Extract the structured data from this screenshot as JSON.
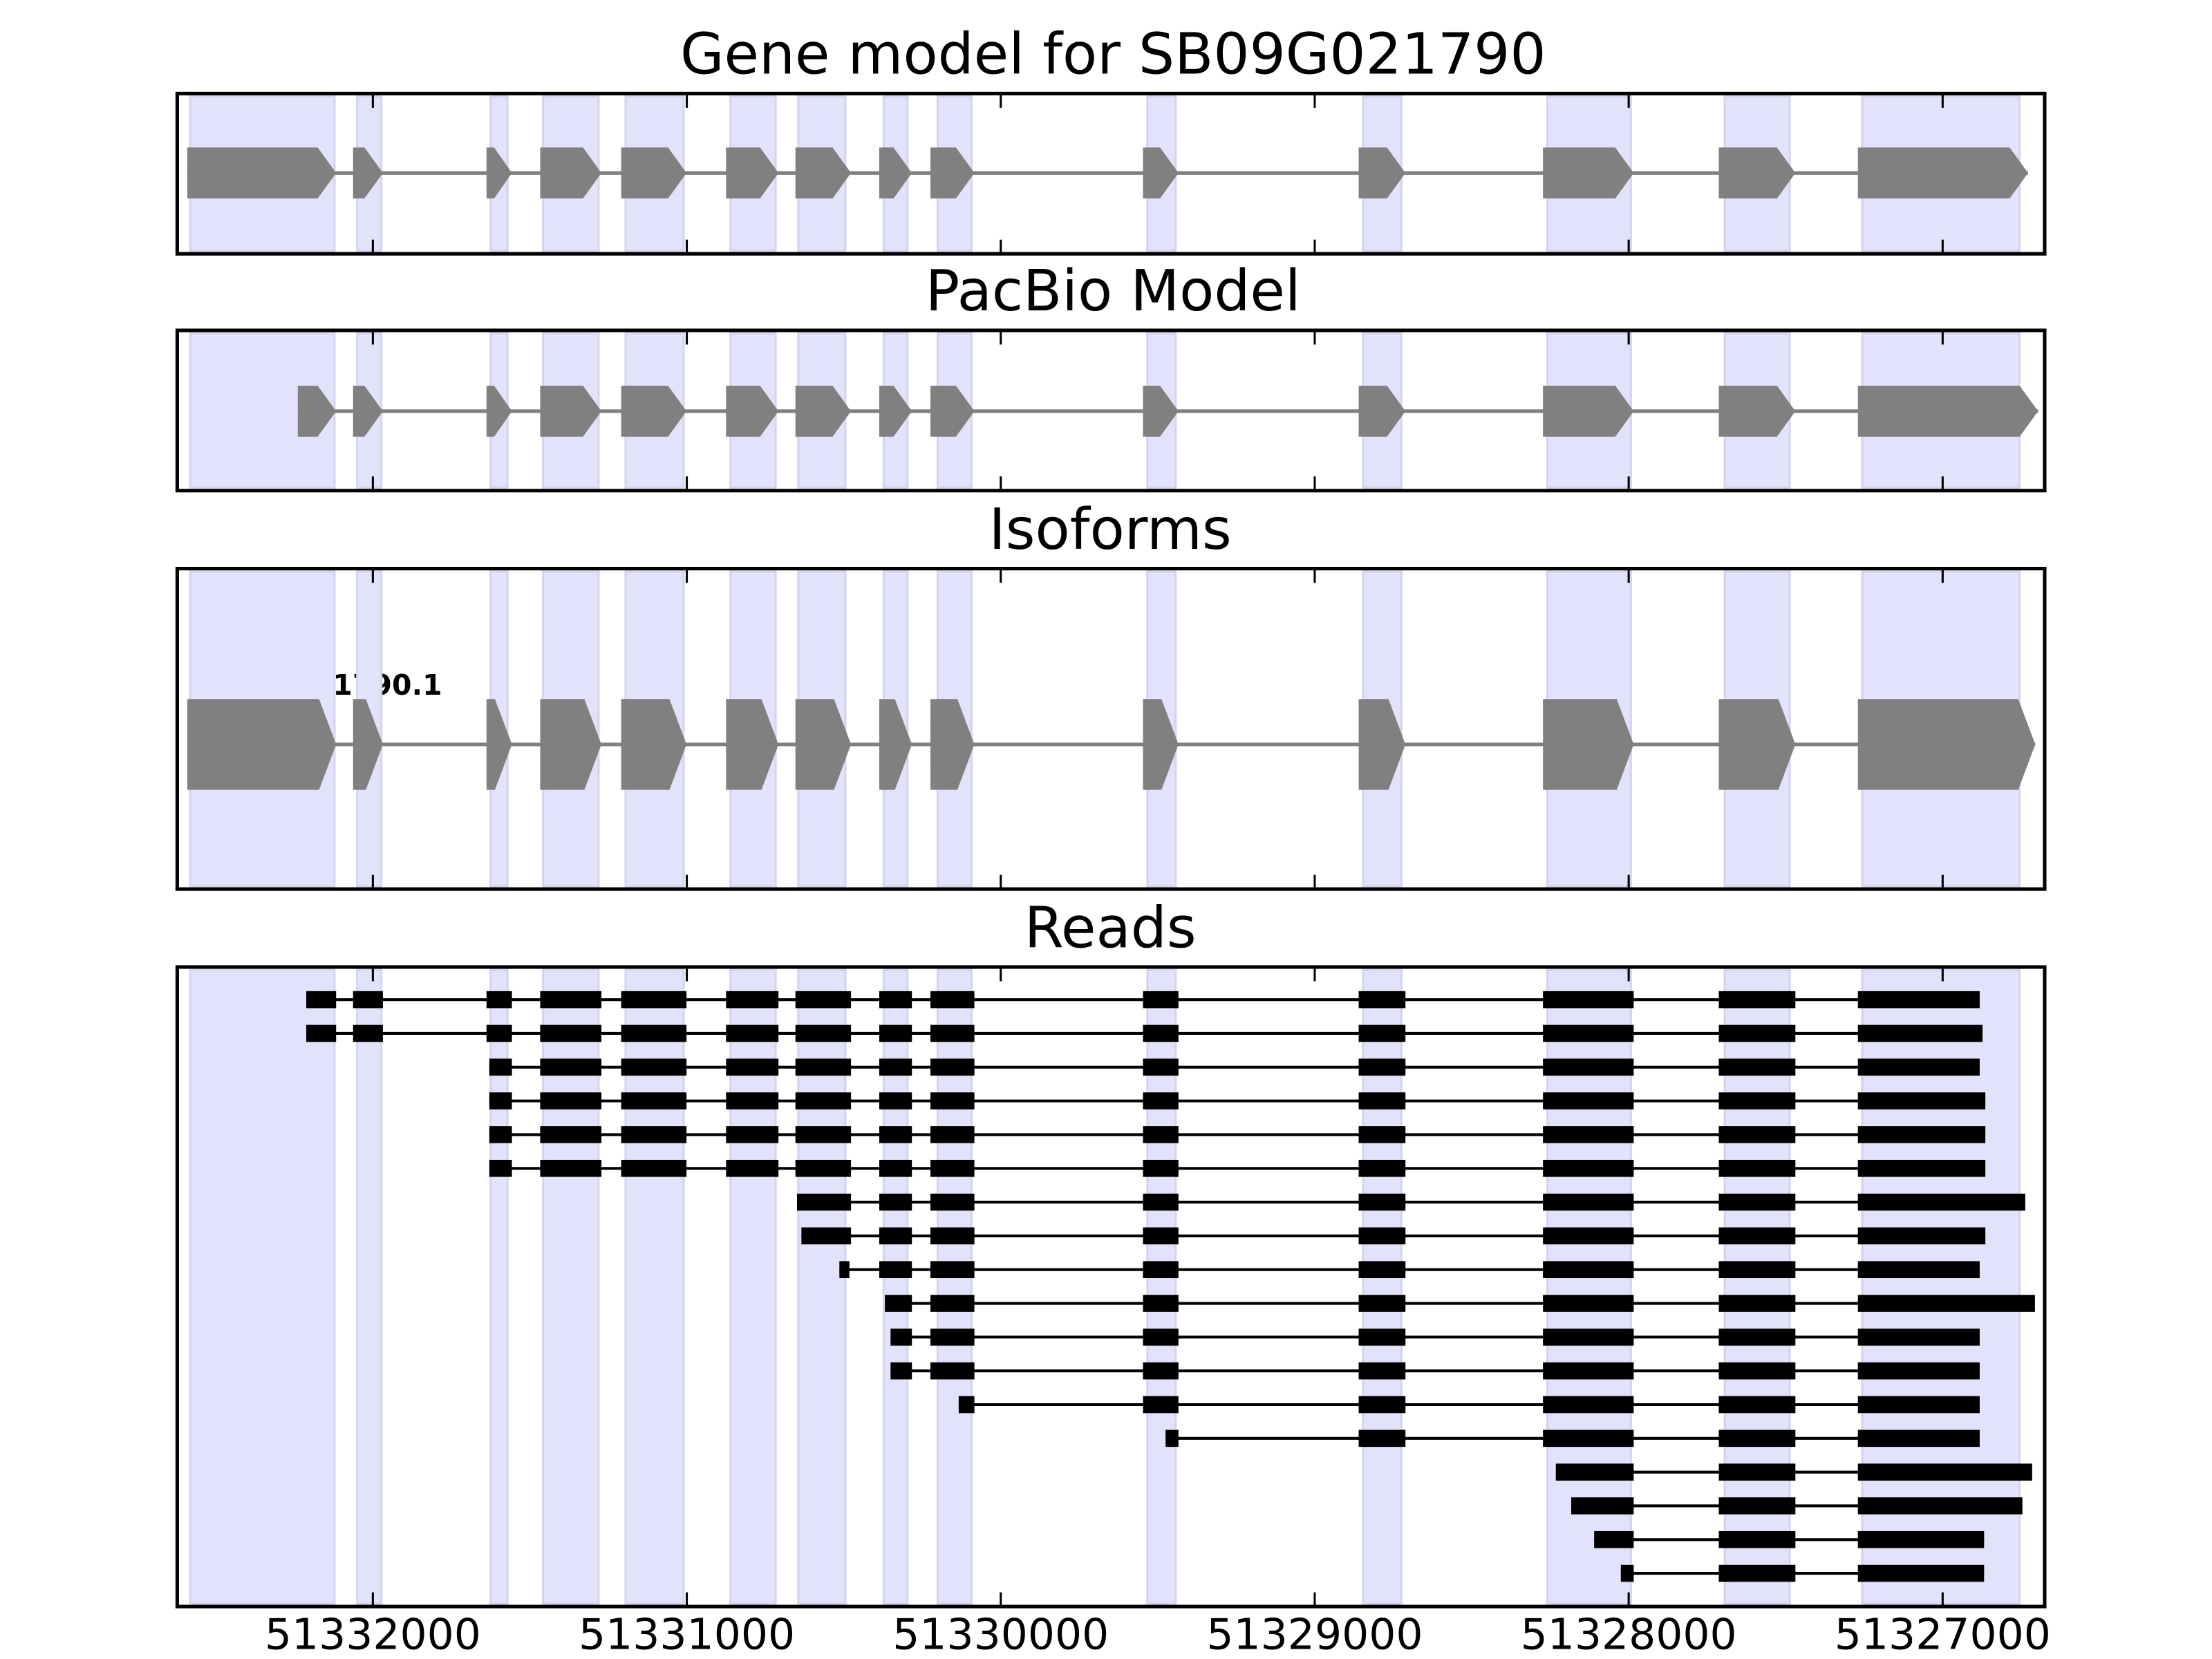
{
  "chart_data": {
    "type": "gene-track",
    "xlim": [
      51332623,
      51326675
    ],
    "x_ticks": [
      51332000,
      51331000,
      51330000,
      51329000,
      51328000,
      51327000
    ],
    "x_tick_labels": [
      "51332000",
      "51331000",
      "51330000",
      "51329000",
      "51328000",
      "51327000"
    ],
    "shade_color": "#e2e2fb",
    "exon_color": "#808080",
    "read_color": "#000000",
    "strand": "-",
    "panels": [
      {
        "title": "Gene model for SB09G021790",
        "kind": "model"
      },
      {
        "title": "PacBio Model",
        "kind": "model"
      },
      {
        "title": "Isoforms",
        "kind": "isoform",
        "isoform_label": "SB09G021790.1"
      },
      {
        "title": "Reads",
        "kind": "reads"
      }
    ],
    "shaded_regions": [
      [
        51332582,
        51332122
      ],
      [
        51332050,
        51331973
      ],
      [
        51331625,
        51331571
      ],
      [
        51331458,
        51331281
      ],
      [
        51331195,
        51331010
      ],
      [
        51330861,
        51330717
      ],
      [
        51330645,
        51330495
      ],
      [
        51330373,
        51330297
      ],
      [
        51330201,
        51330093
      ],
      [
        51329533,
        51329443
      ],
      [
        51328846,
        51328724
      ],
      [
        51328259,
        51327993
      ],
      [
        51327694,
        51327487
      ],
      [
        51327256,
        51326755
      ]
    ],
    "gene_model_exons": [
      [
        51332591,
        51332117
      ],
      [
        51332063,
        51331968
      ],
      [
        51331638,
        51331557
      ],
      [
        51331467,
        51331272
      ],
      [
        51331209,
        51331001
      ],
      [
        51330875,
        51330708
      ],
      [
        51330654,
        51330477
      ],
      [
        51330387,
        51330283
      ],
      [
        51330224,
        51330084
      ],
      [
        51329547,
        51329434
      ],
      [
        51328860,
        51328711
      ],
      [
        51328273,
        51327984
      ],
      [
        51327713,
        51327469
      ],
      [
        51327270,
        51326728
      ]
    ],
    "pacbio_model_exons": [
      [
        51332239,
        51332117
      ],
      [
        51332063,
        51331968
      ],
      [
        51331638,
        51331557
      ],
      [
        51331467,
        51331272
      ],
      [
        51331209,
        51331001
      ],
      [
        51330875,
        51330708
      ],
      [
        51330654,
        51330477
      ],
      [
        51330387,
        51330283
      ],
      [
        51330224,
        51330084
      ],
      [
        51329547,
        51329434
      ],
      [
        51328860,
        51328711
      ],
      [
        51328273,
        51327984
      ],
      [
        51327713,
        51327469
      ],
      [
        51327270,
        51326696
      ]
    ],
    "isoform_exons": [
      [
        51332591,
        51332117
      ],
      [
        51332063,
        51331968
      ],
      [
        51331638,
        51331557
      ],
      [
        51331467,
        51331272
      ],
      [
        51331209,
        51331001
      ],
      [
        51330875,
        51330708
      ],
      [
        51330654,
        51330477
      ],
      [
        51330387,
        51330283
      ],
      [
        51330224,
        51330084
      ],
      [
        51329547,
        51329434
      ],
      [
        51328860,
        51328711
      ],
      [
        51328273,
        51327984
      ],
      [
        51327713,
        51327469
      ],
      [
        51327270,
        51326705
      ]
    ],
    "reads": [
      {
        "first_exon": 0,
        "start": 51332212,
        "end": 51326882
      },
      {
        "first_exon": 0,
        "start": 51332212,
        "end": 51326873
      },
      {
        "first_exon": 2,
        "start": 51331629,
        "end": 51326882
      },
      {
        "first_exon": 2,
        "start": 51331629,
        "end": 51326864
      },
      {
        "first_exon": 2,
        "start": 51331629,
        "end": 51326864
      },
      {
        "first_exon": 2,
        "start": 51331629,
        "end": 51326864
      },
      {
        "first_exon": 6,
        "start": 51330649,
        "end": 51326737
      },
      {
        "first_exon": 6,
        "start": 51330635,
        "end": 51326864
      },
      {
        "first_exon": 6,
        "start": 51330514,
        "first_exon_end": 51330482,
        "end": 51326882
      },
      {
        "first_exon": 7,
        "start": 51330369,
        "end": 51326706
      },
      {
        "first_exon": 7,
        "start": 51330351,
        "end": 51326882
      },
      {
        "first_exon": 7,
        "start": 51330351,
        "end": 51326882
      },
      {
        "first_exon": 8,
        "start": 51330134,
        "end": 51326882
      },
      {
        "first_exon": 9,
        "start": 51329475,
        "end": 51326882
      },
      {
        "first_exon": 11,
        "start": 51328232,
        "end": 51326715
      },
      {
        "first_exon": 11,
        "start": 51328183,
        "end": 51326746
      },
      {
        "first_exon": 11,
        "start": 51328110,
        "end": 51326868
      },
      {
        "first_exon": 11,
        "start": 51328025,
        "end": 51326868
      }
    ]
  }
}
